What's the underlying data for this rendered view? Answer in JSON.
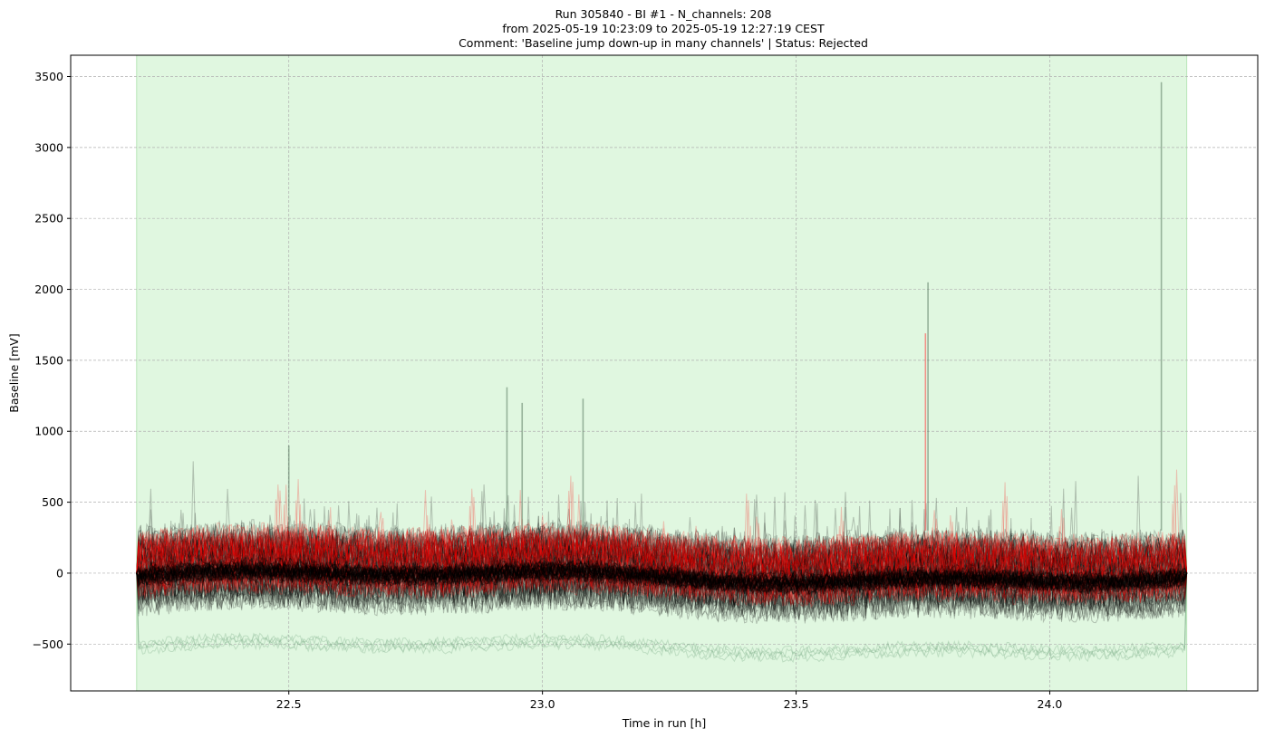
{
  "chart_data": {
    "type": "line",
    "title_lines": [
      "Run 305840  -  BI #1  -  N_channels: 208",
      "from  2025-05-19 10:23:09  to  2025-05-19 12:27:19 CEST",
      "Comment: 'Baseline jump down-up in many channels' | Status: Rejected"
    ],
    "xlabel": "Time in run [h]",
    "ylabel": "Baseline [mV]",
    "xlim": [
      22.07,
      24.41
    ],
    "ylim": [
      -830,
      3650
    ],
    "xticks": [
      22.5,
      23.0,
      23.5,
      24.0
    ],
    "xtick_labels": [
      "22.5",
      "23.0",
      "23.5",
      "24.0"
    ],
    "yticks": [
      -500,
      0,
      500,
      1000,
      1500,
      2000,
      2500,
      3000,
      3500
    ],
    "ytick_labels": [
      "−500",
      "0",
      "500",
      "1000",
      "1500",
      "2000",
      "2500",
      "3000",
      "3500"
    ],
    "grid": true,
    "shaded_region": {
      "x_start": 22.2,
      "x_end": 24.27,
      "color": "#e0f7e0"
    },
    "time_range": [
      22.2,
      24.27
    ],
    "series": [
      {
        "role": "channel-traces",
        "color": "#000000",
        "band_low": -360,
        "band_high": 420,
        "center": 20
      },
      {
        "role": "flagged-channel-traces",
        "color": "#ff0000",
        "band_low": -200,
        "band_high": 380,
        "center": 60
      },
      {
        "role": "faint-low-traces",
        "color": "#7fb08a",
        "level": -520
      }
    ],
    "notable_spikes": [
      {
        "x": 22.93,
        "y": 1310
      },
      {
        "x": 22.96,
        "y": 1200
      },
      {
        "x": 23.08,
        "y": 1230
      },
      {
        "x": 23.76,
        "y": 2050
      },
      {
        "x": 23.755,
        "y": 1690
      },
      {
        "x": 24.22,
        "y": 3460
      },
      {
        "x": 22.5,
        "y": 900
      }
    ]
  }
}
